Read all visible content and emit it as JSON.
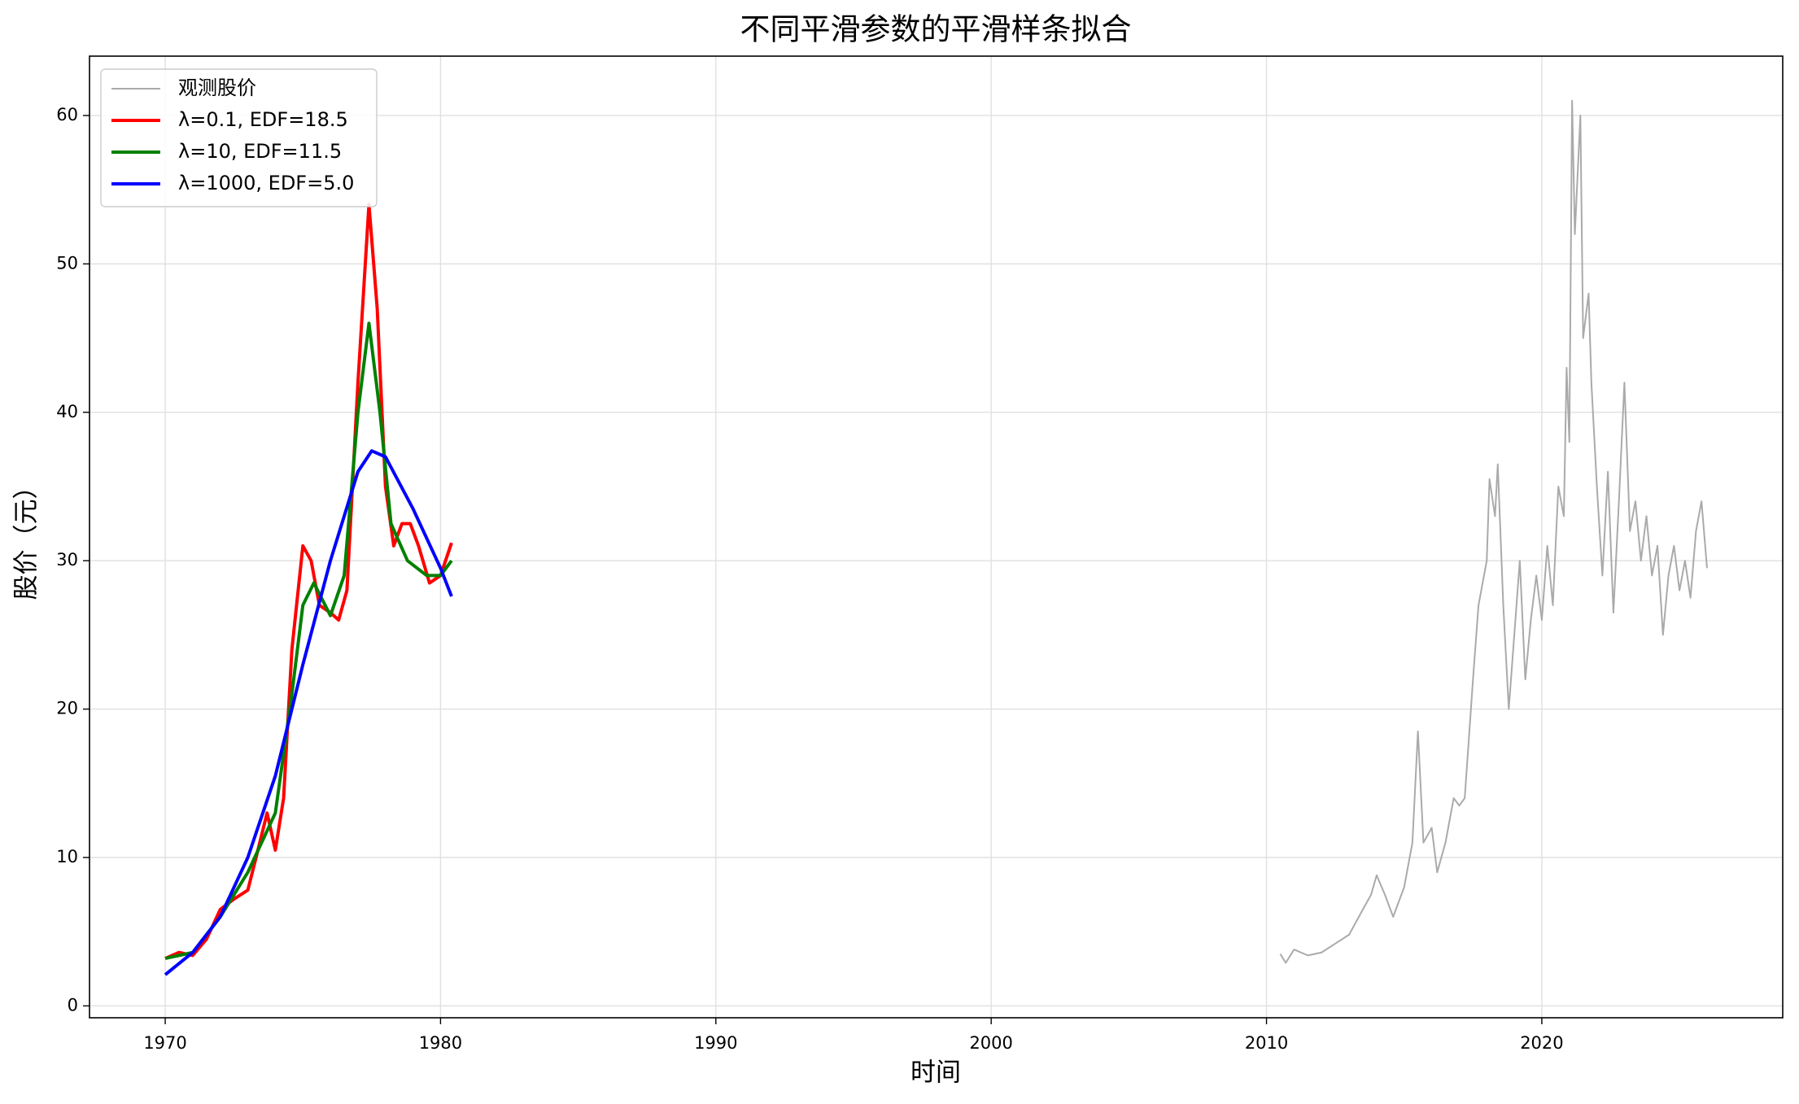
{
  "chart_data": {
    "type": "line",
    "title": "不同平滑参数的平滑样条拟合",
    "xlabel": "时间",
    "ylabel": "股价（元）",
    "xlim": [
      1967.25,
      2028.75
    ],
    "ylim": [
      -0.8,
      64
    ],
    "xticks": [
      1970,
      1980,
      1990,
      2000,
      2010,
      2020
    ],
    "yticks": [
      0,
      10,
      20,
      30,
      40,
      50,
      60
    ],
    "grid": true,
    "legend": "upper left",
    "series": [
      {
        "name": "观测股价",
        "color": "#aaaaaa",
        "x": [
          2010.5,
          2010.7,
          2011,
          2011.5,
          2012,
          2012.5,
          2013,
          2013.5,
          2013.8,
          2014,
          2014.3,
          2014.6,
          2015,
          2015.3,
          2015.5,
          2015.7,
          2016,
          2016.2,
          2016.5,
          2016.8,
          2017,
          2017.2,
          2017.5,
          2017.7,
          2018,
          2018.1,
          2018.3,
          2018.4,
          2018.6,
          2018.8,
          2019,
          2019.2,
          2019.4,
          2019.6,
          2019.8,
          2020,
          2020.2,
          2020.4,
          2020.6,
          2020.8,
          2020.9,
          2021,
          2021.1,
          2021.2,
          2021.4,
          2021.5,
          2021.7,
          2021.8,
          2022,
          2022.2,
          2022.4,
          2022.6,
          2022.8,
          2023,
          2023.2,
          2023.4,
          2023.6,
          2023.8,
          2024,
          2024.2,
          2024.4,
          2024.6,
          2024.8,
          2025,
          2025.2,
          2025.4,
          2025.6,
          2025.8,
          2026
        ],
        "values": [
          3.5,
          2.9,
          3.8,
          3.4,
          3.6,
          4.2,
          4.8,
          6.5,
          7.5,
          8.8,
          7.5,
          6,
          8,
          11,
          18.5,
          11,
          12,
          9,
          11,
          14,
          13.5,
          14,
          22,
          27,
          30,
          35.5,
          33,
          36.5,
          27,
          20,
          25,
          30,
          22,
          26,
          29,
          26,
          31,
          27,
          35,
          33,
          43,
          38,
          61,
          52,
          60,
          45,
          48,
          42,
          35,
          29,
          36,
          26.5,
          34,
          42,
          32,
          34,
          30,
          33,
          29,
          31,
          25,
          29,
          31,
          28,
          30,
          27.5,
          32,
          34,
          29.5
        ]
      },
      {
        "name": "λ=0.1, EDF=18.5",
        "color": "#ff0000",
        "x": [
          1970,
          1970.5,
          1971,
          1971.5,
          1972,
          1972.5,
          1973,
          1973.3,
          1973.7,
          1974,
          1974.3,
          1974.6,
          1975,
          1975.3,
          1975.6,
          1976,
          1976.3,
          1976.6,
          1977,
          1977.4,
          1977.7,
          1978,
          1978.3,
          1978.6,
          1978.9,
          1979.2,
          1979.6,
          1980,
          1980.4
        ],
        "values": [
          3.2,
          3.6,
          3.4,
          4.5,
          6.5,
          7.2,
          7.8,
          10,
          13,
          10.5,
          14,
          24,
          31,
          30,
          27,
          26.5,
          26,
          28,
          42,
          54,
          47,
          35,
          31,
          32.5,
          32.5,
          31,
          28.5,
          29,
          31.2
        ]
      },
      {
        "name": "λ=10, EDF=11.5",
        "color": "#008000",
        "x": [
          1970,
          1971,
          1972,
          1973,
          1974,
          1974.6,
          1975,
          1975.4,
          1976,
          1976.5,
          1977,
          1977.4,
          1977.8,
          1978.2,
          1978.8,
          1979.5,
          1980,
          1980.4
        ],
        "values": [
          3.2,
          3.6,
          6,
          9,
          13,
          21,
          27,
          28.5,
          26.3,
          29,
          40,
          46,
          40,
          32.5,
          30,
          29,
          29,
          30
        ]
      },
      {
        "name": "λ=1000, EDF=5.0",
        "color": "#0000ff",
        "x": [
          1970,
          1971,
          1972,
          1973,
          1974,
          1975,
          1976,
          1977,
          1977.5,
          1978,
          1979,
          1980,
          1980.4
        ],
        "values": [
          2.1,
          3.6,
          6,
          10,
          15.5,
          23,
          30,
          36,
          37.4,
          37,
          33.5,
          29.5,
          27.6
        ]
      }
    ]
  }
}
